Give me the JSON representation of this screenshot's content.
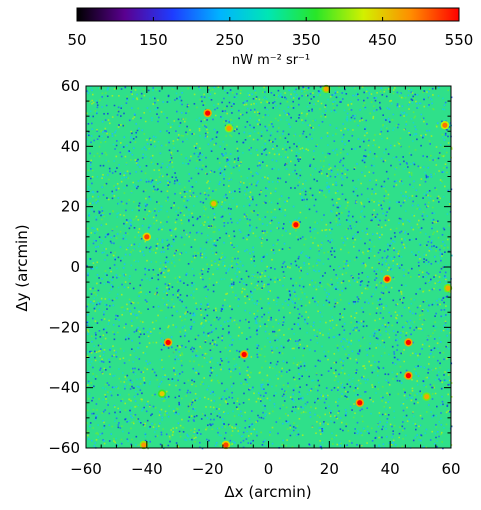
{
  "chart_data": {
    "type": "heatmap",
    "title": "",
    "colorbar": {
      "ticks": [
        50,
        150,
        250,
        350,
        450,
        550
      ],
      "tick_labels": [
        "50",
        "150",
        "250",
        "350",
        "450",
        "550"
      ],
      "label": "nW m⁻² sr⁻¹",
      "range": [
        50,
        550
      ],
      "colormap": [
        "#000000",
        "#5a0090",
        "#1e3cff",
        "#00b4ff",
        "#00e6b4",
        "#28e628",
        "#d2f000",
        "#ff8c00",
        "#ff0000"
      ]
    },
    "xlabel": "Δx (arcmin)",
    "ylabel": "Δy (arcmin)",
    "xlim": [
      -60,
      60
    ],
    "ylim": [
      -60,
      60
    ],
    "xticks": [
      -60,
      -40,
      -20,
      0,
      20,
      40,
      60
    ],
    "yticks": [
      -60,
      -40,
      -20,
      0,
      20,
      40,
      60
    ],
    "xtick_labels": [
      "−60",
      "−40",
      "−20",
      "0",
      "20",
      "40",
      "60"
    ],
    "ytick_labels": [
      "−60",
      "−40",
      "−20",
      "0",
      "20",
      "40",
      "60"
    ],
    "background_level": 320,
    "point_sources": [
      {
        "x": -20,
        "y": 51,
        "value": 550
      },
      {
        "x": -13,
        "y": 46,
        "value": 480
      },
      {
        "x": -40,
        "y": 10,
        "value": 520
      },
      {
        "x": 9,
        "y": 14,
        "value": 550
      },
      {
        "x": -18,
        "y": 21,
        "value": 460
      },
      {
        "x": 39,
        "y": -4,
        "value": 540
      },
      {
        "x": -33,
        "y": -25,
        "value": 550
      },
      {
        "x": -8,
        "y": -29,
        "value": 550
      },
      {
        "x": 46,
        "y": -25,
        "value": 550
      },
      {
        "x": 46,
        "y": -36,
        "value": 550
      },
      {
        "x": 30,
        "y": -45,
        "value": 550
      },
      {
        "x": -14,
        "y": -59,
        "value": 520
      },
      {
        "x": -41,
        "y": -59,
        "value": 480
      },
      {
        "x": 58,
        "y": 47,
        "value": 500
      },
      {
        "x": -35,
        "y": -42,
        "value": 450
      },
      {
        "x": 52,
        "y": -43,
        "value": 470
      },
      {
        "x": 59,
        "y": -7,
        "value": 470
      },
      {
        "x": 19,
        "y": 59,
        "value": 470
      }
    ]
  }
}
